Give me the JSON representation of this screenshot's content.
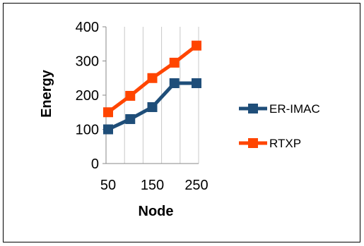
{
  "chart_data": {
    "type": "line",
    "title": "",
    "xlabel": "Node",
    "ylabel": "Energy",
    "x": [
      50,
      100,
      150,
      200,
      250
    ],
    "x_ticks": [
      "50",
      "150",
      "250"
    ],
    "y_ticks": [
      "0",
      "100",
      "200",
      "300",
      "400"
    ],
    "ylim": [
      0,
      400
    ],
    "grid": "vertical",
    "legend_position": "right",
    "series": [
      {
        "name": "ER-IMAC",
        "color": "#1f4e79",
        "values": [
          100,
          130,
          165,
          235,
          235
        ]
      },
      {
        "name": "RTXP",
        "color": "#ff4500",
        "values": [
          150,
          198,
          250,
          295,
          345
        ]
      }
    ]
  }
}
